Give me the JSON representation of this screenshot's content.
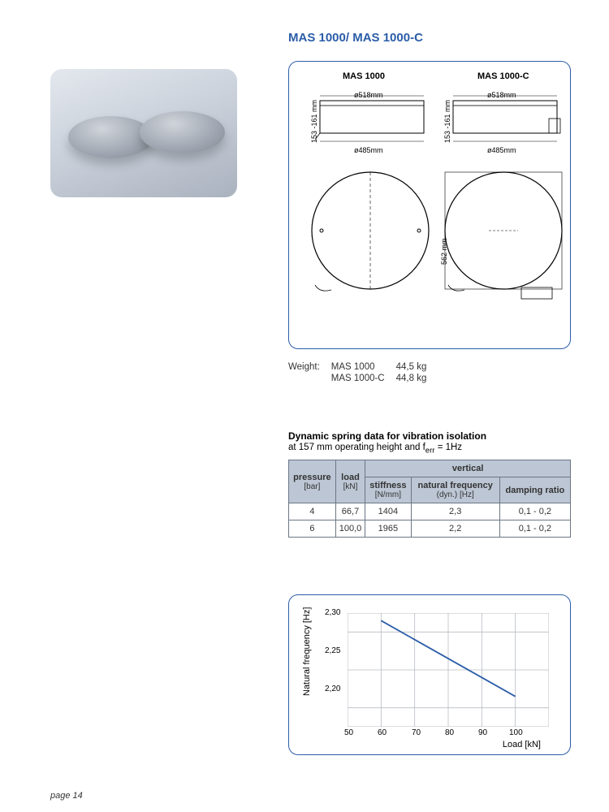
{
  "title": "MAS 1000/ MAS 1000-C",
  "page_label": "page 14",
  "diagram": {
    "label_left": "MAS 1000",
    "label_right": "MAS 1000-C",
    "dim_top_width": "ø518mm",
    "dim_side_height": "153 -161 mm",
    "dim_bottom_width": "ø485mm",
    "dim_plan_height": "562  mm",
    "border_color": "#2b5da8",
    "background_color": "#ffffff"
  },
  "weight": {
    "label": "Weight:",
    "rows": [
      {
        "model": "MAS 1000",
        "value": "44,5 kg"
      },
      {
        "model": "MAS 1000-C",
        "value": "44,8 kg"
      }
    ]
  },
  "spring_table": {
    "title": "Dynamic spring data for vibration isolation",
    "subtitle_prefix": "at 157 mm operating height and f",
    "subtitle_sub": "err",
    "subtitle_suffix": " = 1Hz",
    "group_header": "vertical",
    "columns": [
      {
        "head": "pressure",
        "unit": "[bar]"
      },
      {
        "head": "load",
        "unit": "[kN]"
      },
      {
        "head": "stiffness",
        "unit": "[N/mm]"
      },
      {
        "head": "natural frequency",
        "unit": "(dyn.) [Hz]"
      },
      {
        "head": "damping ratio",
        "unit": ""
      }
    ],
    "rows": [
      [
        "4",
        "66,7",
        "1404",
        "2,3",
        "0,1 - 0,2"
      ],
      [
        "6",
        "100,0",
        "1965",
        "2,2",
        "0,1 - 0,2"
      ]
    ],
    "header_bg": "#bcc6d4",
    "border_color": "#6b7785"
  },
  "chart": {
    "type": "line",
    "ylabel": "Natural frequency [Hz]",
    "xlabel": "Load [kN]",
    "xlim": [
      50,
      110
    ],
    "ylim": [
      2.175,
      2.325
    ],
    "xticks": [
      50,
      60,
      70,
      80,
      90,
      100
    ],
    "yticks": [
      2.2,
      2.25,
      2.3
    ],
    "ytick_labels": [
      "2,20",
      "2,25",
      "2,30"
    ],
    "series": {
      "x": [
        60,
        100
      ],
      "y": [
        2.315,
        2.215
      ],
      "color": "#2b5da8",
      "width": 1.8
    },
    "grid_color": "#b8bcc2",
    "background_color": "#ffffff",
    "panel_border_color": "#2b5da8",
    "label_fontsize": 11,
    "tick_fontsize": 10
  }
}
